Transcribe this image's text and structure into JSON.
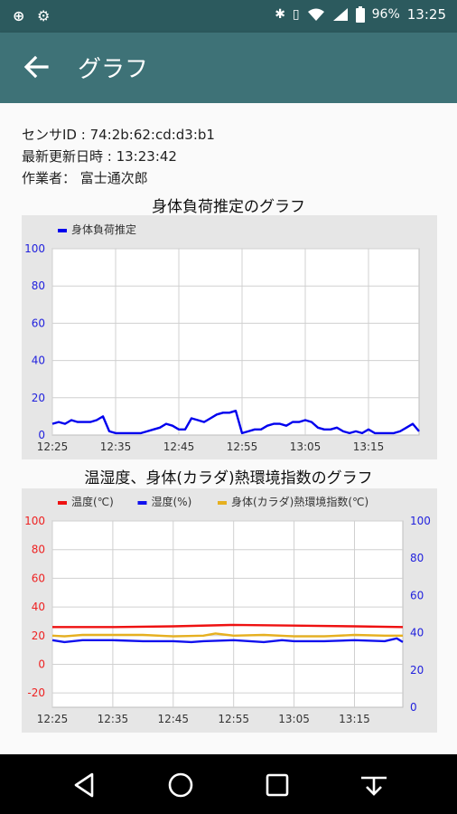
{
  "status_bar": {
    "left_icons": "⊕ ⚙",
    "battery": "96%",
    "time": "13:25"
  },
  "app_bar": {
    "title": "グラフ"
  },
  "info": {
    "sensor_id": "センサID : 74:2b:62:cd:d3:b1",
    "last_update": "最新更新日時 : 13:23:42",
    "operator": "作業者： 富士通次郎"
  },
  "chart_data": [
    {
      "type": "line",
      "title": "身体負荷推定のグラフ",
      "x_ticks": [
        "12:25",
        "12:35",
        "12:45",
        "12:55",
        "13:05",
        "13:15"
      ],
      "xlim": [
        "12:25",
        "13:23"
      ],
      "y_ticks": [
        0,
        20,
        40,
        60,
        80,
        100
      ],
      "ylim": [
        0,
        100
      ],
      "legend_position": "top-left",
      "grid": true,
      "series": [
        {
          "name": "身体負荷推定",
          "color": "#0000ee",
          "x": [
            "12:25",
            "12:26",
            "12:27",
            "12:28",
            "12:29",
            "12:30",
            "12:31",
            "12:32",
            "12:33",
            "12:34",
            "12:35",
            "12:36",
            "12:37",
            "12:38",
            "12:39",
            "12:40",
            "12:41",
            "12:42",
            "12:43",
            "12:44",
            "12:45",
            "12:46",
            "12:47",
            "12:48",
            "12:49",
            "12:50",
            "12:51",
            "12:52",
            "12:53",
            "12:54",
            "12:55",
            "12:56",
            "12:57",
            "12:58",
            "12:59",
            "13:00",
            "13:01",
            "13:02",
            "13:03",
            "13:04",
            "13:05",
            "13:06",
            "13:07",
            "13:08",
            "13:09",
            "13:10",
            "13:11",
            "13:12",
            "13:13",
            "13:14",
            "13:15",
            "13:16",
            "13:17",
            "13:18",
            "13:19",
            "13:20",
            "13:21",
            "13:22",
            "13:23"
          ],
          "values": [
            6,
            7,
            6,
            8,
            7,
            7,
            7,
            8,
            10,
            2,
            1,
            1,
            1,
            1,
            1,
            2,
            3,
            4,
            6,
            5,
            3,
            3,
            9,
            8,
            7,
            9,
            11,
            12,
            12,
            13,
            1,
            2,
            3,
            3,
            5,
            6,
            6,
            5,
            7,
            7,
            8,
            7,
            4,
            3,
            3,
            4,
            2,
            1,
            2,
            1,
            3,
            1,
            1,
            1,
            1,
            2,
            4,
            6,
            2
          ]
        }
      ]
    },
    {
      "type": "line",
      "title": "温湿度、身体(カラダ)熱環境指数のグラフ",
      "x_ticks": [
        "12:25",
        "12:35",
        "12:45",
        "12:55",
        "13:05",
        "13:15"
      ],
      "xlim": [
        "12:25",
        "13:23"
      ],
      "y_left_ticks": [
        -20,
        0,
        20,
        40,
        60,
        80,
        100
      ],
      "y_left_lim": [
        -30,
        100
      ],
      "y_right_ticks": [
        0,
        20,
        40,
        60,
        80,
        100
      ],
      "y_right_lim": [
        0,
        100
      ],
      "legend_position": "top-left",
      "grid": true,
      "series": [
        {
          "name": "温度(℃)",
          "axis": "left",
          "color": "#ee1111",
          "x": [
            "12:25",
            "12:35",
            "12:45",
            "12:55",
            "13:05",
            "13:15",
            "13:23"
          ],
          "values": [
            26,
            26,
            26.5,
            27.5,
            27,
            26.5,
            26
          ]
        },
        {
          "name": "湿度(%)",
          "axis": "right",
          "color": "#1111ee",
          "x": [
            "12:25",
            "12:27",
            "12:30",
            "12:35",
            "12:40",
            "12:45",
            "12:48",
            "12:50",
            "12:55",
            "13:00",
            "13:03",
            "13:05",
            "13:10",
            "13:15",
            "13:20",
            "13:22",
            "13:23"
          ],
          "values": [
            36,
            35,
            36,
            36,
            35.5,
            35.5,
            35,
            35.5,
            36,
            35,
            36,
            35.5,
            35.5,
            36,
            35.5,
            37,
            35
          ]
        },
        {
          "name": "身体(カラダ)熱環境指数(℃)",
          "axis": "left",
          "color": "#e6b020",
          "x": [
            "12:25",
            "12:27",
            "12:30",
            "12:35",
            "12:40",
            "12:45",
            "12:50",
            "12:52",
            "12:55",
            "13:00",
            "13:05",
            "13:10",
            "13:15",
            "13:20",
            "13:23"
          ],
          "values": [
            20,
            19.5,
            20.5,
            20.5,
            20.5,
            19.5,
            20,
            21.5,
            20,
            20.5,
            19.5,
            19.5,
            20.5,
            20,
            20
          ]
        }
      ]
    }
  ]
}
